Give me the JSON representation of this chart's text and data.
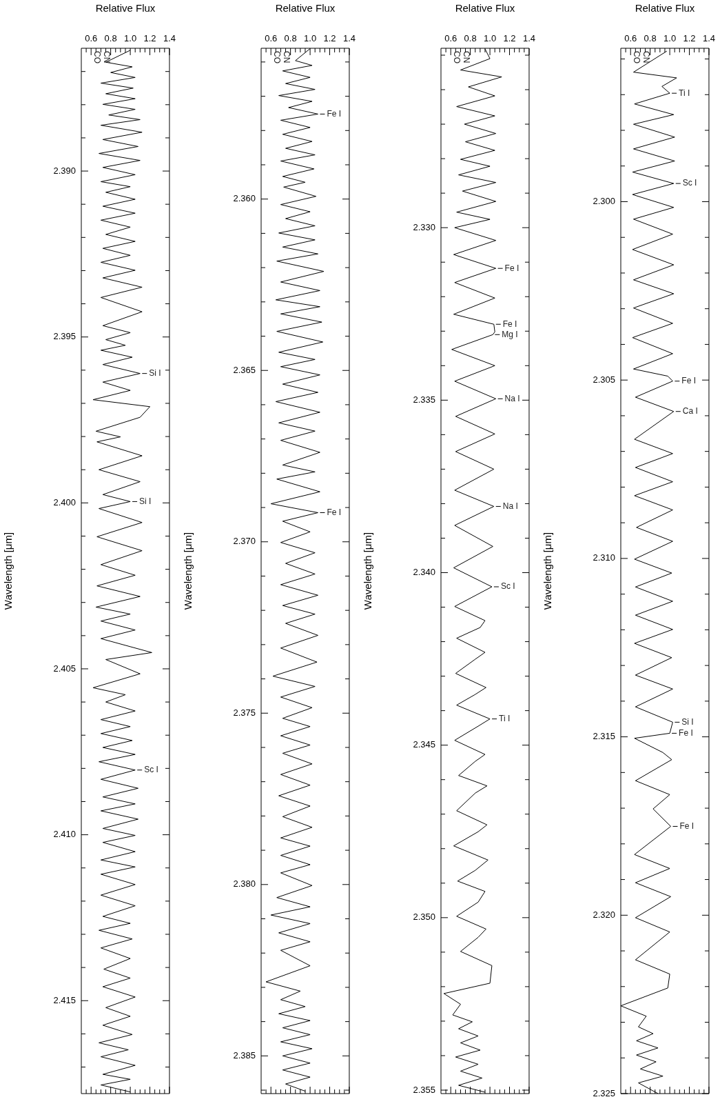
{
  "chart_data": [
    {
      "type": "line",
      "xlabel": "Relative Flux",
      "ylabel": "Wavelength [μm]",
      "marker": "none",
      "grid": false,
      "legend": false,
      "ylim": [
        2.325,
        2.2957
      ],
      "xlim": [
        0.5,
        1.4
      ],
      "yticks": [
        {
          "value": 2.296,
          "label": null
        },
        {
          "value": 2.297,
          "label": null
        },
        {
          "value": 2.298,
          "label": null
        },
        {
          "value": 2.299,
          "label": null
        },
        {
          "value": 2.3,
          "label": "2.300"
        },
        {
          "value": 2.301,
          "label": null
        },
        {
          "value": 2.302,
          "label": null
        },
        {
          "value": 2.303,
          "label": null
        },
        {
          "value": 2.304,
          "label": null
        },
        {
          "value": 2.305,
          "label": "2.305"
        },
        {
          "value": 2.306,
          "label": null
        },
        {
          "value": 2.307,
          "label": null
        },
        {
          "value": 2.308,
          "label": null
        },
        {
          "value": 2.309,
          "label": null
        },
        {
          "value": 2.31,
          "label": "2.310"
        },
        {
          "value": 2.311,
          "label": null
        },
        {
          "value": 2.312,
          "label": null
        },
        {
          "value": 2.313,
          "label": null
        },
        {
          "value": 2.314,
          "label": null
        },
        {
          "value": 2.315,
          "label": "2.315"
        },
        {
          "value": 2.316,
          "label": null
        },
        {
          "value": 2.317,
          "label": null
        },
        {
          "value": 2.318,
          "label": null
        },
        {
          "value": 2.319,
          "label": null
        },
        {
          "value": 2.32,
          "label": "2.320"
        },
        {
          "value": 2.321,
          "label": null
        },
        {
          "value": 2.322,
          "label": null
        },
        {
          "value": 2.323,
          "label": null
        },
        {
          "value": 2.324,
          "label": null
        },
        {
          "value": 2.325,
          "label": "2.325"
        }
      ],
      "xticks": [
        {
          "value": 0.55,
          "label": null
        },
        {
          "value": 0.6,
          "label": "0.6"
        },
        {
          "value": 0.65,
          "label": null
        },
        {
          "value": 0.7,
          "label": null
        },
        {
          "value": 0.75,
          "label": null
        },
        {
          "value": 0.8,
          "label": "0.8"
        },
        {
          "value": 0.85,
          "label": null
        },
        {
          "value": 0.9,
          "label": null
        },
        {
          "value": 0.95,
          "label": null
        },
        {
          "value": 1.0,
          "label": "1.0"
        },
        {
          "value": 1.05,
          "label": null
        },
        {
          "value": 1.1,
          "label": null
        },
        {
          "value": 1.15,
          "label": null
        },
        {
          "value": 1.2,
          "label": "1.2"
        },
        {
          "value": 1.25,
          "label": null
        },
        {
          "value": 1.3,
          "label": null
        },
        {
          "value": 1.35,
          "label": null
        },
        {
          "value": 1.4,
          "label": "1.4"
        }
      ],
      "annotations": [
        "CO",
        "CN",
        {
          "text": "Ti I",
          "x": 1.0,
          "y": 2.29696
        },
        {
          "text": "Sc I",
          "x": 1.04,
          "y": 2.29949
        },
        {
          "text": "Fe I",
          "x": 1.03,
          "y": 2.30503
        },
        {
          "text": "Ca I",
          "x": 1.04,
          "y": 2.30588
        },
        {
          "text": "Si I",
          "x": 1.03,
          "y": 2.31459
        },
        {
          "text": "Fe I",
          "x": 1.0,
          "y": 2.3149
        },
        {
          "text": "Fe I",
          "x": 1.01,
          "y": 2.31751
        }
      ],
      "series": [
        {
          "color": "#000000",
          "x": [
            0.97,
            0.63,
            1.07,
            0.92,
            1.0,
            0.64,
            1.04,
            0.63,
            1.05,
            0.63,
            1.05,
            0.62,
            1.04,
            0.62,
            1.04,
            0.63,
            1.03,
            0.62,
            1.04,
            0.63,
            1.04,
            0.63,
            1.03,
            0.62,
            1.03,
            0.63,
            0.98,
            1.03,
            0.65,
            1.04,
            0.64,
            1.03,
            0.65,
            1.03,
            0.64,
            1.03,
            0.66,
            1.03,
            0.64,
            1.02,
            0.65,
            1.03,
            0.65,
            1.03,
            0.64,
            1.02,
            0.65,
            1.03,
            0.65,
            1.03,
            1.0,
            0.64,
            0.93,
            1.02,
            0.65,
            1.0,
            0.83,
            1.01,
            0.64,
            1.0,
            0.65,
            1.01,
            0.65,
            1.0,
            0.65,
            1.0,
            0.98,
            0.5,
            0.76,
            0.68,
            0.83,
            0.66,
            0.88,
            0.66,
            0.86,
            0.7,
            0.93,
            0.68,
            0.88
          ],
          "values": [
            2.29578,
            2.29637,
            2.29653,
            2.29677,
            2.29696,
            2.29726,
            2.29756,
            2.29783,
            2.29819,
            2.29852,
            2.29886,
            2.29917,
            2.29949,
            2.2998,
            2.30016,
            2.30049,
            2.30091,
            2.30134,
            2.30177,
            2.30219,
            2.30258,
            2.30298,
            2.30341,
            2.30381,
            2.30426,
            2.30469,
            2.30489,
            2.30503,
            2.30548,
            2.30588,
            2.30666,
            2.30706,
            2.30745,
            2.30785,
            2.30824,
            2.30864,
            2.30913,
            2.30952,
            2.31002,
            2.31041,
            2.3108,
            2.3112,
            2.31159,
            2.31199,
            2.31238,
            2.31278,
            2.31327,
            2.31366,
            2.31416,
            2.31459,
            2.3149,
            2.31504,
            2.31544,
            2.31564,
            2.31623,
            2.31662,
            2.31702,
            2.31751,
            2.3183,
            2.31869,
            2.31909,
            2.31948,
            2.32007,
            2.32047,
            2.32125,
            2.32165,
            2.32204,
            2.32254,
            2.32283,
            2.32313,
            2.32332,
            2.32352,
            2.32372,
            2.32392,
            2.32411,
            2.32431,
            2.32451,
            2.3247,
            2.325
          ]
        }
      ]
    },
    {
      "type": "line",
      "xlabel": "Relative Flux",
      "ylabel": "Wavelength [μm]",
      "marker": "none",
      "grid": false,
      "legend": false,
      "ylim": [
        2.3551,
        2.3248
      ],
      "xlim": [
        0.5,
        1.4
      ],
      "yticks": [
        {
          "value": 2.325,
          "label": null
        },
        {
          "value": 2.326,
          "label": null
        },
        {
          "value": 2.327,
          "label": null
        },
        {
          "value": 2.328,
          "label": null
        },
        {
          "value": 2.329,
          "label": null
        },
        {
          "value": 2.33,
          "label": "2.330"
        },
        {
          "value": 2.331,
          "label": null
        },
        {
          "value": 2.332,
          "label": null
        },
        {
          "value": 2.333,
          "label": null
        },
        {
          "value": 2.334,
          "label": null
        },
        {
          "value": 2.335,
          "label": "2.335"
        },
        {
          "value": 2.336,
          "label": null
        },
        {
          "value": 2.337,
          "label": null
        },
        {
          "value": 2.338,
          "label": null
        },
        {
          "value": 2.339,
          "label": null
        },
        {
          "value": 2.34,
          "label": "2.340"
        },
        {
          "value": 2.341,
          "label": null
        },
        {
          "value": 2.342,
          "label": null
        },
        {
          "value": 2.343,
          "label": null
        },
        {
          "value": 2.344,
          "label": null
        },
        {
          "value": 2.345,
          "label": "2.345"
        },
        {
          "value": 2.346,
          "label": null
        },
        {
          "value": 2.347,
          "label": null
        },
        {
          "value": 2.348,
          "label": null
        },
        {
          "value": 2.349,
          "label": null
        },
        {
          "value": 2.35,
          "label": "2.350"
        },
        {
          "value": 2.351,
          "label": null
        },
        {
          "value": 2.352,
          "label": null
        },
        {
          "value": 2.353,
          "label": null
        },
        {
          "value": 2.354,
          "label": null
        },
        {
          "value": 2.355,
          "label": "2.355"
        }
      ],
      "xticks": [
        {
          "value": 0.55,
          "label": null
        },
        {
          "value": 0.6,
          "label": "0.6"
        },
        {
          "value": 0.65,
          "label": null
        },
        {
          "value": 0.7,
          "label": null
        },
        {
          "value": 0.75,
          "label": null
        },
        {
          "value": 0.8,
          "label": "0.8"
        },
        {
          "value": 0.85,
          "label": null
        },
        {
          "value": 0.9,
          "label": null
        },
        {
          "value": 0.95,
          "label": null
        },
        {
          "value": 1.0,
          "label": "1.0"
        },
        {
          "value": 1.05,
          "label": null
        },
        {
          "value": 1.1,
          "label": null
        },
        {
          "value": 1.15,
          "label": null
        },
        {
          "value": 1.2,
          "label": "1.2"
        },
        {
          "value": 1.25,
          "label": null
        },
        {
          "value": 1.3,
          "label": null
        },
        {
          "value": 1.35,
          "label": null
        },
        {
          "value": 1.4,
          "label": "1.4"
        }
      ],
      "annotations": [
        "CO",
        "CN",
        {
          "text": "Fe I",
          "x": 1.06,
          "y": 2.33118
        },
        {
          "text": "Fe I",
          "x": 1.04,
          "y": 2.3328
        },
        {
          "text": "Mg I",
          "x": 1.03,
          "y": 2.3331
        },
        {
          "text": "Na I",
          "x": 1.06,
          "y": 2.33496
        },
        {
          "text": "Na I",
          "x": 1.04,
          "y": 2.33808
        },
        {
          "text": "Sc I",
          "x": 1.02,
          "y": 2.34041
        },
        {
          "text": "Ti I",
          "x": 1.0,
          "y": 2.34424
        }
      ],
      "series": [
        {
          "color": "#000000",
          "x": [
            0.95,
            1.0,
            0.7,
            1.12,
            0.78,
            1.05,
            0.66,
            1.05,
            0.74,
            1.06,
            0.75,
            1.05,
            0.7,
            1.0,
            0.68,
            1.06,
            0.72,
            1.06,
            0.66,
            1.0,
            0.64,
            1.06,
            0.63,
            1.06,
            0.64,
            1.05,
            0.63,
            1.04,
            1.05,
            1.03,
            0.61,
            1.05,
            0.64,
            1.06,
            0.65,
            1.05,
            0.65,
            1.04,
            0.64,
            1.04,
            0.64,
            1.03,
            0.63,
            1.02,
            0.64,
            0.95,
            0.9,
            0.66,
            0.95,
            0.85,
            0.65,
            0.96,
            0.85,
            0.66,
            1.0,
            0.88,
            0.64,
            0.95,
            0.85,
            0.68,
            0.97,
            0.85,
            0.66,
            0.97,
            0.88,
            0.63,
            0.98,
            0.85,
            0.67,
            0.95,
            0.88,
            0.66,
            0.96,
            0.88,
            0.7,
            1.02,
            1.0,
            0.53,
            0.7,
            0.62,
            0.82,
            0.68,
            0.88,
            0.7,
            0.9,
            0.65,
            0.88,
            0.7,
            0.92,
            0.68,
            0.95
          ],
          "values": [
            2.32482,
            2.3251,
            2.32543,
            2.32563,
            2.32592,
            2.32618,
            2.32649,
            2.32676,
            2.327,
            2.32727,
            2.32751,
            2.32776,
            2.32802,
            2.32822,
            2.32847,
            2.32869,
            2.32894,
            2.32924,
            2.32955,
            2.32976,
            2.33,
            2.33037,
            2.33078,
            2.33118,
            2.33159,
            2.33204,
            2.33251,
            2.3328,
            2.33302,
            2.3331,
            2.33353,
            2.334,
            2.33445,
            2.33496,
            2.33547,
            2.33598,
            2.33649,
            2.337,
            2.33761,
            2.33808,
            2.33863,
            2.33924,
            2.33986,
            2.34041,
            2.34098,
            2.34139,
            2.34159,
            2.3419,
            2.34231,
            2.34251,
            2.34292,
            2.34333,
            2.34353,
            2.34384,
            2.34424,
            2.34445,
            2.34486,
            2.34527,
            2.34547,
            2.34588,
            2.34618,
            2.34639,
            2.3469,
            2.34731,
            2.34751,
            2.34792,
            2.34833,
            2.34863,
            2.34894,
            2.34924,
            2.34955,
            2.34996,
            2.35033,
            2.35057,
            2.35098,
            2.35139,
            2.3519,
            2.3522,
            2.35251,
            2.35282,
            2.35302,
            2.35322,
            2.35343,
            2.35363,
            2.35384,
            2.35404,
            2.35425,
            2.35445,
            2.35465,
            2.35486,
            2.35506
          ]
        }
      ]
    },
    {
      "type": "line",
      "xlabel": "Relative Flux",
      "ylabel": "Wavelength [μm]",
      "marker": "none",
      "grid": false,
      "legend": false,
      "ylim": [
        2.3861,
        2.3556
      ],
      "xlim": [
        0.5,
        1.4
      ],
      "yticks": [
        {
          "value": 2.356,
          "label": null
        },
        {
          "value": 2.357,
          "label": null
        },
        {
          "value": 2.358,
          "label": null
        },
        {
          "value": 2.359,
          "label": null
        },
        {
          "value": 2.36,
          "label": "2.360"
        },
        {
          "value": 2.361,
          "label": null
        },
        {
          "value": 2.362,
          "label": null
        },
        {
          "value": 2.363,
          "label": null
        },
        {
          "value": 2.364,
          "label": null
        },
        {
          "value": 2.365,
          "label": "2.365"
        },
        {
          "value": 2.366,
          "label": null
        },
        {
          "value": 2.367,
          "label": null
        },
        {
          "value": 2.368,
          "label": null
        },
        {
          "value": 2.369,
          "label": null
        },
        {
          "value": 2.37,
          "label": "2.370"
        },
        {
          "value": 2.371,
          "label": null
        },
        {
          "value": 2.372,
          "label": null
        },
        {
          "value": 2.373,
          "label": null
        },
        {
          "value": 2.374,
          "label": null
        },
        {
          "value": 2.375,
          "label": "2.375"
        },
        {
          "value": 2.376,
          "label": null
        },
        {
          "value": 2.377,
          "label": null
        },
        {
          "value": 2.378,
          "label": null
        },
        {
          "value": 2.379,
          "label": null
        },
        {
          "value": 2.38,
          "label": "2.380"
        },
        {
          "value": 2.381,
          "label": null
        },
        {
          "value": 2.382,
          "label": null
        },
        {
          "value": 2.383,
          "label": null
        },
        {
          "value": 2.384,
          "label": null
        },
        {
          "value": 2.385,
          "label": "2.385"
        },
        {
          "value": 2.386,
          "label": null
        }
      ],
      "xticks": [
        {
          "value": 0.55,
          "label": null
        },
        {
          "value": 0.6,
          "label": "0.6"
        },
        {
          "value": 0.65,
          "label": null
        },
        {
          "value": 0.7,
          "label": null
        },
        {
          "value": 0.75,
          "label": null
        },
        {
          "value": 0.8,
          "label": "0.8"
        },
        {
          "value": 0.85,
          "label": null
        },
        {
          "value": 0.9,
          "label": null
        },
        {
          "value": 0.95,
          "label": null
        },
        {
          "value": 1.0,
          "label": "1.0"
        },
        {
          "value": 1.05,
          "label": null
        },
        {
          "value": 1.1,
          "label": null
        },
        {
          "value": 1.15,
          "label": null
        },
        {
          "value": 1.2,
          "label": "1.2"
        },
        {
          "value": 1.25,
          "label": null
        },
        {
          "value": 1.3,
          "label": null
        },
        {
          "value": 1.35,
          "label": null
        },
        {
          "value": 1.4,
          "label": "1.4"
        }
      ],
      "annotations": [
        "CO",
        "CN",
        {
          "text": "Fe I",
          "x": 1.08,
          "y": 2.35752
        },
        {
          "text": "Fe I",
          "x": 1.08,
          "y": 2.36915
        }
      ],
      "series": [
        {
          "color": "#000000",
          "x": [
            1.0,
            0.85,
            1.02,
            0.72,
            1.0,
            0.75,
            1.05,
            0.68,
            1.02,
            0.78,
            1.08,
            0.7,
            1.0,
            0.72,
            1.02,
            0.75,
            1.05,
            0.7,
            1.04,
            0.72,
            0.95,
            0.73,
            1.06,
            0.7,
            1.0,
            0.75,
            1.05,
            0.68,
            1.05,
            0.72,
            1.08,
            0.66,
            1.14,
            0.7,
            1.1,
            0.65,
            1.1,
            0.7,
            1.12,
            0.66,
            1.13,
            0.68,
            1.05,
            0.7,
            1.1,
            0.72,
            1.08,
            0.65,
            1.1,
            0.68,
            1.05,
            0.7,
            1.1,
            0.72,
            1.05,
            0.66,
            1.1,
            0.6,
            1.08,
            0.72,
            1.0,
            0.7,
            1.05,
            0.75,
            1.05,
            0.7,
            1.08,
            0.72,
            1.05,
            0.75,
            1.08,
            0.7,
            1.07,
            0.62,
            1.05,
            0.7,
            1.02,
            0.72,
            1.0,
            0.7,
            1.0,
            0.72,
            1.02,
            0.7,
            1.0,
            0.68,
            1.0,
            0.72,
            1.02,
            0.7,
            1.0,
            0.7,
            1.0,
            0.7,
            1.02,
            0.66,
            1.0,
            0.6,
            1.0,
            0.68,
            1.0,
            0.7,
            1.0,
            0.55,
            0.9,
            0.7,
            0.95,
            0.68,
            1.0,
            0.72,
            1.0,
            0.7,
            1.02,
            0.72,
            1.0,
            0.72,
            1.0,
            0.75,
            0.95
          ],
          "values": [
            2.35561,
            2.35596,
            2.3561,
            2.35626,
            2.35645,
            2.35663,
            2.3568,
            2.35698,
            2.35715,
            2.35733,
            2.35752,
            2.3577,
            2.35791,
            2.35811,
            2.35832,
            2.35852,
            2.35871,
            2.35889,
            2.35912,
            2.35934,
            2.35951,
            2.35965,
            2.35992,
            2.36016,
            2.36037,
            2.36057,
            2.36078,
            2.36099,
            2.36119,
            2.3614,
            2.3616,
            2.36181,
            2.36211,
            2.36242,
            2.36267,
            2.36294,
            2.36314,
            2.36335,
            2.36359,
            2.36386,
            2.36417,
            2.36447,
            2.36468,
            2.36489,
            2.36513,
            2.3654,
            2.36564,
            2.36591,
            2.36622,
            2.36653,
            2.36677,
            2.36704,
            2.36739,
            2.36776,
            2.36796,
            2.36817,
            2.36854,
            2.36889,
            2.36915,
            2.3694,
            2.36971,
            2.37002,
            2.37032,
            2.37063,
            2.37094,
            2.37125,
            2.37156,
            2.37186,
            2.37211,
            2.37238,
            2.37273,
            2.3731,
            2.37351,
            2.37392,
            2.37422,
            2.37453,
            2.37484,
            2.37515,
            2.37539,
            2.37566,
            2.37593,
            2.37617,
            2.37648,
            2.37679,
            2.3771,
            2.37741,
            2.37771,
            2.37802,
            2.37833,
            2.37864,
            2.37888,
            2.37915,
            2.37942,
            2.37966,
            2.38003,
            2.38038,
            2.38065,
            2.38089,
            2.38114,
            2.38141,
            2.38167,
            2.38192,
            2.38237,
            2.38284,
            2.38311,
            2.38336,
            2.38356,
            2.38377,
            2.38397,
            2.38418,
            2.38438,
            2.38459,
            2.38479,
            2.385,
            2.38521,
            2.38541,
            2.38562,
            2.38582,
            2.38603
          ]
        }
      ]
    },
    {
      "type": "line",
      "xlabel": "Relative Flux",
      "ylabel": "Wavelength [μm]",
      "marker": "none",
      "grid": false,
      "legend": false,
      "ylim": [
        2.4178,
        2.3863
      ],
      "xlim": [
        0.5,
        1.4
      ],
      "yticks": [
        {
          "value": 2.387,
          "label": null
        },
        {
          "value": 2.388,
          "label": null
        },
        {
          "value": 2.389,
          "label": null
        },
        {
          "value": 2.39,
          "label": "2.390"
        },
        {
          "value": 2.391,
          "label": null
        },
        {
          "value": 2.392,
          "label": null
        },
        {
          "value": 2.393,
          "label": null
        },
        {
          "value": 2.394,
          "label": null
        },
        {
          "value": 2.395,
          "label": "2.395"
        },
        {
          "value": 2.396,
          "label": null
        },
        {
          "value": 2.397,
          "label": null
        },
        {
          "value": 2.398,
          "label": null
        },
        {
          "value": 2.399,
          "label": null
        },
        {
          "value": 2.4,
          "label": "2.400"
        },
        {
          "value": 2.401,
          "label": null
        },
        {
          "value": 2.402,
          "label": null
        },
        {
          "value": 2.403,
          "label": null
        },
        {
          "value": 2.404,
          "label": null
        },
        {
          "value": 2.405,
          "label": "2.405"
        },
        {
          "value": 2.406,
          "label": null
        },
        {
          "value": 2.407,
          "label": null
        },
        {
          "value": 2.408,
          "label": null
        },
        {
          "value": 2.409,
          "label": null
        },
        {
          "value": 2.41,
          "label": "2.410"
        },
        {
          "value": 2.411,
          "label": null
        },
        {
          "value": 2.412,
          "label": null
        },
        {
          "value": 2.413,
          "label": null
        },
        {
          "value": 2.414,
          "label": null
        },
        {
          "value": 2.415,
          "label": "2.415"
        },
        {
          "value": 2.416,
          "label": null
        },
        {
          "value": 2.417,
          "label": null
        }
      ],
      "xticks": [
        {
          "value": 0.55,
          "label": null
        },
        {
          "value": 0.6,
          "label": "0.6"
        },
        {
          "value": 0.65,
          "label": null
        },
        {
          "value": 0.7,
          "label": null
        },
        {
          "value": 0.75,
          "label": null
        },
        {
          "value": 0.8,
          "label": "0.8"
        },
        {
          "value": 0.85,
          "label": null
        },
        {
          "value": 0.9,
          "label": null
        },
        {
          "value": 0.95,
          "label": null
        },
        {
          "value": 1.0,
          "label": "1.0"
        },
        {
          "value": 1.05,
          "label": null
        },
        {
          "value": 1.1,
          "label": null
        },
        {
          "value": 1.15,
          "label": null
        },
        {
          "value": 1.2,
          "label": "1.2"
        },
        {
          "value": 1.25,
          "label": null
        },
        {
          "value": 1.3,
          "label": null
        },
        {
          "value": 1.35,
          "label": null
        },
        {
          "value": 1.4,
          "label": "1.4"
        }
      ],
      "annotations": [
        "CO",
        "CN",
        {
          "text": "Si I",
          "x": 1.1,
          "y": 2.3961
        },
        {
          "text": "Si I",
          "x": 1.0,
          "y": 2.39996
        },
        {
          "text": "Sc I",
          "x": 1.05,
          "y": 2.40805
        }
      ],
      "series": [
        {
          "color": "#000000",
          "x": [
            1.0,
            0.75,
            1.02,
            0.8,
            1.05,
            0.7,
            1.03,
            0.75,
            1.05,
            0.72,
            1.05,
            0.78,
            1.1,
            0.7,
            1.12,
            0.72,
            1.08,
            0.68,
            1.1,
            0.72,
            1.05,
            0.7,
            1.0,
            0.75,
            1.05,
            0.72,
            1.05,
            0.7,
            1.0,
            0.75,
            1.05,
            0.72,
            1.0,
            0.7,
            1.05,
            0.72,
            1.12,
            0.7,
            1.12,
            0.72,
            1.0,
            0.75,
            0.95,
            0.7,
            1.02,
            0.72,
            1.1,
            0.72,
            1.0,
            0.62,
            1.2,
            1.1,
            0.65,
            0.9,
            0.66,
            1.12,
            0.68,
            1.1,
            0.72,
            1.0,
            0.68,
            1.12,
            0.66,
            1.12,
            0.7,
            1.05,
            0.66,
            1.1,
            0.65,
            1.0,
            0.7,
            1.05,
            0.7,
            1.22,
            0.75,
            1.1,
            0.62,
            0.95,
            0.75,
            1.05,
            0.7,
            1.0,
            0.7,
            1.02,
            0.72,
            1.05,
            0.68,
            1.05,
            0.7,
            1.08,
            0.72,
            1.05,
            0.7,
            1.08,
            0.72,
            1.05,
            0.72,
            1.05,
            0.7,
            1.05,
            0.7,
            1.05,
            0.7,
            1.05,
            0.72,
            1.0,
            0.68,
            1.02,
            0.7,
            1.0,
            0.73,
            1.0,
            0.72,
            1.05,
            0.75,
            1.0,
            0.72,
            1.02,
            0.68,
            0.98,
            0.7,
            1.05,
            0.72,
            1.0,
            0.7,
            1.0
          ],
          "values": [
            2.38636,
            2.38672,
            2.38686,
            2.38703,
            2.38718,
            2.38735,
            2.3875,
            2.38767,
            2.38782,
            2.38799,
            2.38814,
            2.38831,
            2.38845,
            2.38862,
            2.38883,
            2.38905,
            2.38926,
            2.38947,
            2.38968,
            2.38989,
            2.39011,
            2.39032,
            2.39047,
            2.39064,
            2.39085,
            2.39106,
            2.39127,
            2.39148,
            2.39169,
            2.39191,
            2.39212,
            2.39233,
            2.39254,
            2.39275,
            2.39299,
            2.39322,
            2.3935,
            2.39381,
            2.39424,
            2.39466,
            2.39487,
            2.39508,
            2.39525,
            2.3954,
            2.39561,
            2.39583,
            2.3961,
            2.39636,
            2.39661,
            2.39689,
            2.3971,
            2.39742,
            2.39784,
            2.39801,
            2.39816,
            2.39858,
            2.399,
            2.39936,
            2.39975,
            2.39996,
            2.40017,
            2.40059,
            2.40102,
            2.40144,
            2.40186,
            2.40218,
            2.4025,
            2.40282,
            2.40314,
            2.40335,
            2.40356,
            2.40383,
            2.40409,
            2.40451,
            2.40472,
            2.40515,
            2.40557,
            2.40578,
            2.406,
            2.40627,
            2.40653,
            2.40674,
            2.40695,
            2.40716,
            2.40737,
            2.40758,
            2.4078,
            2.40805,
            2.40833,
            2.4086,
            2.40886,
            2.40907,
            2.40928,
            2.40953,
            2.40981,
            2.41002,
            2.41023,
            2.41051,
            2.41076,
            2.41097,
            2.41119,
            2.4115,
            2.41182,
            2.41214,
            2.41246,
            2.41267,
            2.41288,
            2.41314,
            2.41341,
            2.41373,
            2.41405,
            2.41432,
            2.41458,
            2.41489,
            2.41521,
            2.41547,
            2.41574,
            2.41602,
            2.41627,
            2.41648,
            2.41669,
            2.41695,
            2.41722,
            2.41737,
            2.41754,
            2.41775
          ]
        }
      ]
    }
  ]
}
